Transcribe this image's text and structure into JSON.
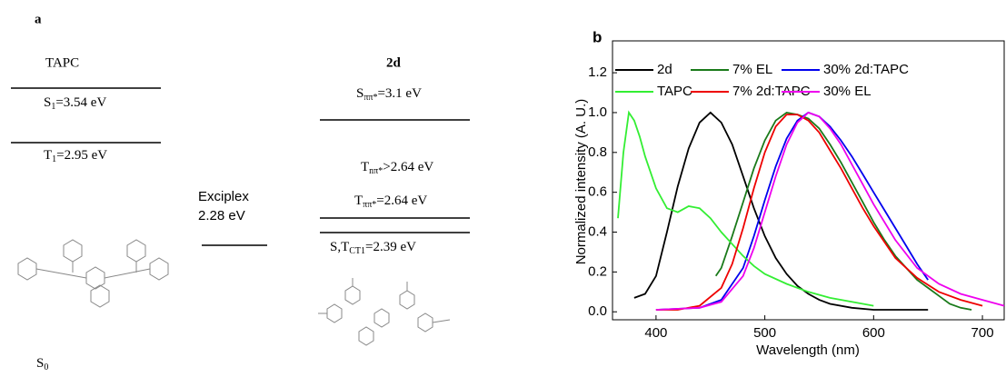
{
  "panel_a": {
    "label": "a",
    "tapc": {
      "name": "TAPC",
      "s1": {
        "symbol": "S",
        "sub": "1",
        "rest": "=3.54 eV"
      },
      "t1": {
        "symbol": "T",
        "sub": "1",
        "rest": "=2.95 eV"
      },
      "s0": {
        "symbol": "S",
        "sub": "0"
      }
    },
    "exciplex": {
      "name": "Exciplex",
      "energy": "2.28 eV"
    },
    "d2": {
      "name": "2d",
      "s_pipi": {
        "symbol": "S",
        "sub": "ππ*",
        "rest": "=3.1 eV"
      },
      "t_npi": {
        "symbol": "T",
        "sub": "nπ*",
        "rest": ">2.64 eV"
      },
      "t_pipi": {
        "symbol": "T",
        "sub": "ππ*",
        "rest": "=2.64 eV"
      },
      "ct": {
        "symbol": "S,T",
        "sub": "CT1",
        "rest": "=2.39 eV"
      }
    }
  },
  "chart_data": {
    "type": "line",
    "panel_label": "b",
    "xlabel": "Wavelength (nm)",
    "ylabel": "Normalized intensity (A. U.)",
    "xlim": [
      360,
      720
    ],
    "ylim": [
      -0.04,
      1.36
    ],
    "xticks": [
      400,
      500,
      600,
      700
    ],
    "yticks": [
      {
        "value": 0,
        "label": "0.0"
      },
      0.2,
      0.4,
      0.6,
      0.8,
      {
        "value": 1,
        "label": "1.0"
      },
      1.2
    ],
    "legend": "top",
    "series": [
      {
        "name": "2d",
        "color": "#000000",
        "x": [
          380,
          390,
          400,
          410,
          420,
          430,
          440,
          450,
          460,
          470,
          480,
          490,
          500,
          510,
          520,
          530,
          540,
          550,
          560,
          580,
          600,
          620,
          650
        ],
        "values": [
          0.07,
          0.09,
          0.18,
          0.4,
          0.63,
          0.82,
          0.95,
          1.0,
          0.95,
          0.84,
          0.68,
          0.52,
          0.38,
          0.27,
          0.19,
          0.13,
          0.09,
          0.06,
          0.04,
          0.02,
          0.01,
          0.01,
          0.01
        ]
      },
      {
        "name": "7% EL",
        "color": "#1a7a1a",
        "x": [
          455,
          460,
          470,
          480,
          490,
          500,
          510,
          520,
          530,
          540,
          550,
          560,
          570,
          580,
          590,
          600,
          610,
          620,
          630,
          640,
          650,
          660,
          670,
          680,
          690
        ],
        "values": [
          0.18,
          0.22,
          0.38,
          0.55,
          0.72,
          0.86,
          0.96,
          1.0,
          0.99,
          0.97,
          0.92,
          0.84,
          0.75,
          0.65,
          0.55,
          0.45,
          0.36,
          0.28,
          0.22,
          0.16,
          0.12,
          0.08,
          0.04,
          0.02,
          0.01
        ]
      },
      {
        "name": "30% 2d:TAPC",
        "color": "#0000ee",
        "x": [
          400,
          440,
          460,
          480,
          490,
          500,
          510,
          520,
          530,
          540,
          550,
          560,
          570,
          580,
          590,
          600,
          610,
          620,
          630,
          640,
          650
        ],
        "values": [
          0.01,
          0.02,
          0.06,
          0.22,
          0.38,
          0.56,
          0.73,
          0.87,
          0.96,
          1.0,
          0.98,
          0.93,
          0.86,
          0.78,
          0.69,
          0.6,
          0.51,
          0.42,
          0.33,
          0.24,
          0.16
        ]
      },
      {
        "name": "TAPC",
        "color": "#33ee33",
        "x": [
          365,
          370,
          375,
          380,
          385,
          390,
          400,
          410,
          420,
          430,
          440,
          450,
          460,
          470,
          480,
          490,
          500,
          520,
          540,
          560,
          580,
          600
        ],
        "values": [
          0.47,
          0.8,
          1.0,
          0.96,
          0.88,
          0.78,
          0.62,
          0.52,
          0.5,
          0.53,
          0.52,
          0.47,
          0.4,
          0.34,
          0.28,
          0.23,
          0.19,
          0.14,
          0.1,
          0.07,
          0.05,
          0.03
        ]
      },
      {
        "name": "7% 2d:TAPC",
        "color": "#ee0000",
        "x": [
          400,
          420,
          440,
          460,
          470,
          480,
          490,
          500,
          510,
          520,
          530,
          540,
          550,
          560,
          570,
          580,
          590,
          600,
          620,
          640,
          660,
          680,
          700
        ],
        "values": [
          0.01,
          0.01,
          0.03,
          0.12,
          0.24,
          0.42,
          0.62,
          0.8,
          0.93,
          0.99,
          0.99,
          0.96,
          0.9,
          0.81,
          0.72,
          0.62,
          0.52,
          0.43,
          0.27,
          0.17,
          0.1,
          0.06,
          0.03
        ]
      },
      {
        "name": "30% EL",
        "color": "#ee00ee",
        "x": [
          400,
          440,
          460,
          480,
          490,
          500,
          510,
          520,
          530,
          540,
          550,
          560,
          570,
          580,
          590,
          600,
          620,
          640,
          660,
          680,
          700,
          720
        ],
        "values": [
          0.01,
          0.02,
          0.05,
          0.18,
          0.32,
          0.5,
          0.68,
          0.84,
          0.95,
          1.0,
          0.98,
          0.92,
          0.84,
          0.74,
          0.64,
          0.54,
          0.36,
          0.22,
          0.14,
          0.09,
          0.06,
          0.03
        ]
      }
    ]
  }
}
